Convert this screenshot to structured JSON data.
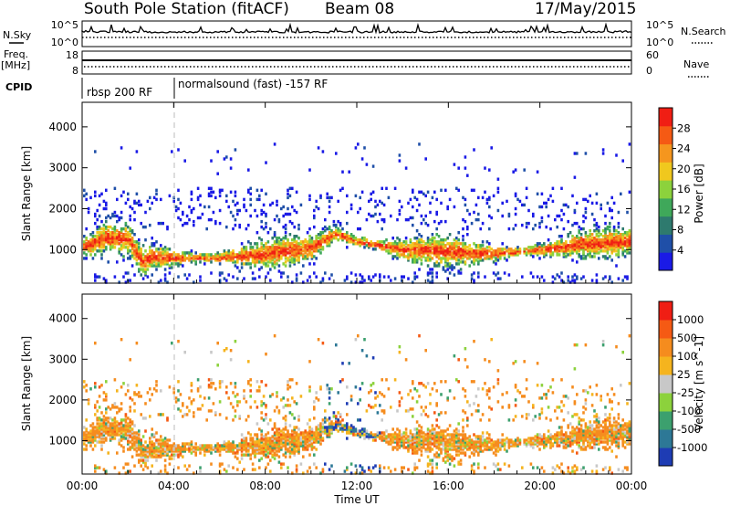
{
  "header": {
    "station": "South Pole Station (fitACF)",
    "beam": "Beam 08",
    "date": "17/May/2015"
  },
  "summary": {
    "nsky_label": "N.Sky",
    "nsearch_label": "N.Search",
    "freq_label_1": "Freq.",
    "freq_label_2": "[MHz]",
    "nave_label": "Nave",
    "cpid_label": "CPID",
    "nsky_ticks": [
      "10^5",
      "10^0"
    ],
    "nsearch_ticks": [
      "10^5",
      "10^0"
    ],
    "freq_ticks": [
      "18",
      "8"
    ],
    "nave_ticks": [
      "60",
      "0"
    ]
  },
  "cpid": {
    "segments": [
      {
        "label": "rbsp 200 RF",
        "start_hour": 0,
        "end_hour": 3.9
      },
      {
        "label": "normalsound (fast) -157 RF",
        "start_hour": 3.9,
        "end_hour": 24
      }
    ]
  },
  "time_axis": {
    "label": "Time UT",
    "ticks": [
      "00:00",
      "04:00",
      "08:00",
      "12:00",
      "16:00",
      "20:00",
      "00:00"
    ]
  },
  "power_panel": {
    "ylabel": "Slant Range [km]",
    "yticks": [
      "4000",
      "3000",
      "2000",
      "1000"
    ],
    "colorbar_label": "Power [dB]",
    "colorbar_ticks": [
      "28",
      "24",
      "20",
      "16",
      "12",
      "8",
      "4"
    ],
    "colors": [
      "#1a1ae6",
      "#1f4fa8",
      "#2e7a6e",
      "#3fa85a",
      "#8cd23c",
      "#f0c81e",
      "#f5961e",
      "#f55a14",
      "#f01e14"
    ]
  },
  "velocity_panel": {
    "ylabel": "Slant Range [km]",
    "yticks": [
      "4000",
      "3000",
      "2000",
      "1000"
    ],
    "colorbar_label": "Velocity [m s^-1]",
    "colorbar_ticks": [
      "1000",
      "500",
      "100",
      "25",
      "-25",
      "-100",
      "-500",
      "-1000"
    ],
    "colors": [
      "#1e3cb4",
      "#2d7896",
      "#3ca06e",
      "#8cd23c",
      "#c8c8c8",
      "#f5b41e",
      "#f58c1e",
      "#f55a14",
      "#f01e14"
    ]
  },
  "chart_data": [
    {
      "type": "heatmap",
      "title": "South Pole Station (fitACF) Beam 08 17/May/2015",
      "xlabel": "Time UT",
      "ylabel": "Slant Range [km]",
      "xlim": [
        0,
        24
      ],
      "ylim": [
        180,
        4600
      ],
      "z_label": "Power [dB]",
      "z_range": [
        0,
        30
      ],
      "main_echo_band_center_km": [
        [
          0,
          1050
        ],
        [
          1,
          1300
        ],
        [
          2,
          1250
        ],
        [
          2.6,
          700
        ],
        [
          3,
          800
        ],
        [
          4,
          800
        ],
        [
          6,
          800
        ],
        [
          8,
          900
        ],
        [
          10,
          1050
        ],
        [
          11,
          1400
        ],
        [
          12,
          1200
        ],
        [
          14,
          1000
        ],
        [
          16,
          950
        ],
        [
          18,
          900
        ],
        [
          20,
          1000
        ],
        [
          22,
          1150
        ],
        [
          24,
          1200
        ]
      ]
    },
    {
      "type": "heatmap",
      "title": "South Pole Station (fitACF) Beam 08 17/May/2015",
      "xlabel": "Time UT",
      "ylabel": "Slant Range [km]",
      "xlim": [
        0,
        24
      ],
      "ylim": [
        180,
        4600
      ],
      "z_label": "Velocity [m s^-1]",
      "z_range": [
        -1000,
        1000
      ]
    }
  ]
}
